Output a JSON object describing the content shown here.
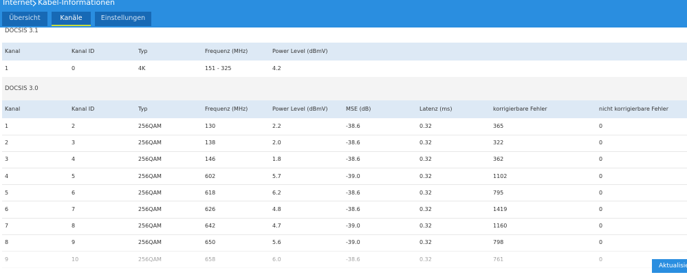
{
  "header": {
    "section": "Internet",
    "page": "Kabel-Informationen"
  },
  "tabs": [
    "Übersicht",
    "Kanäle",
    "Einstellungen"
  ],
  "docsis31": {
    "title": "DOCSIS 3.1",
    "columns": [
      "Kanal",
      "Kanal ID",
      "Typ",
      "Frequenz (MHz)",
      "Power Level (dBmV)"
    ],
    "rows": [
      [
        "1",
        "0",
        "4K",
        "151 - 325",
        "4.2"
      ]
    ]
  },
  "docsis30": {
    "title": "DOCSIS 3.0",
    "columns": [
      "Kanal",
      "Kanal ID",
      "Typ",
      "Frequenz (MHz)",
      "Power Level (dBmV)",
      "MSE (dB)",
      "Latenz (ms)",
      "korrigierbare Fehler",
      "nicht korrigierbare Fehler"
    ],
    "rows": [
      [
        "1",
        "2",
        "256QAM",
        "130",
        "2.2",
        "-38.6",
        "0.32",
        "365",
        "0"
      ],
      [
        "2",
        "3",
        "256QAM",
        "138",
        "2.0",
        "-38.6",
        "0.32",
        "322",
        "0"
      ],
      [
        "3",
        "4",
        "256QAM",
        "146",
        "1.8",
        "-38.6",
        "0.32",
        "362",
        "0"
      ],
      [
        "4",
        "5",
        "256QAM",
        "602",
        "5.7",
        "-39.0",
        "0.32",
        "1102",
        "0"
      ],
      [
        "5",
        "6",
        "256QAM",
        "618",
        "6.2",
        "-38.6",
        "0.32",
        "795",
        "0"
      ],
      [
        "6",
        "7",
        "256QAM",
        "626",
        "4.8",
        "-38.6",
        "0.32",
        "1419",
        "0"
      ],
      [
        "7",
        "8",
        "256QAM",
        "642",
        "4.7",
        "-39.0",
        "0.32",
        "1160",
        "0"
      ],
      [
        "8",
        "9",
        "256QAM",
        "650",
        "5.6",
        "-39.0",
        "0.32",
        "798",
        "0"
      ],
      [
        "9",
        "10",
        "256QAM",
        "658",
        "6.0",
        "-38.6",
        "0.32",
        "761",
        "0"
      ]
    ]
  },
  "button": "Aktualisieren"
}
